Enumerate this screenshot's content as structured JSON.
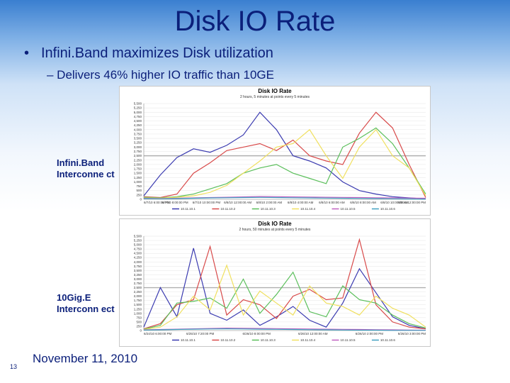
{
  "slide": {
    "title": "Disk IO Rate",
    "bullet": "Infini.Band maximizes Disk utilization",
    "sub_bullet": "– Delivers 46% higher IO traffic than 10GE",
    "bullet_marker": "•",
    "label_top": "Infini.Band Interconne ct",
    "label_bottom": "10Gig.E Interconn ect",
    "date": "November 11, 2010",
    "page_number": "13"
  },
  "chart_data": [
    {
      "type": "line",
      "title": "Disk IO Rate",
      "subtitle": "2 hours, 5 minutes at points every 5 minutes",
      "ylabel": "",
      "ylim": [
        0,
        5500
      ],
      "yticks": [
        "5,500",
        "5,250",
        "5,000",
        "4,750",
        "4,500",
        "4,250",
        "4,000",
        "3,750",
        "3,500",
        "3,250",
        "3,000",
        "2,750",
        "2,500",
        "2,250",
        "2,000",
        "1,750",
        "1,500",
        "1,250",
        "1,000",
        "750",
        "500",
        "250",
        "0"
      ],
      "xticks": [
        "6/7/10 6:00:00 PM",
        "6/7/10 8:00:00 PM",
        "6/7/10 10:00:00 PM",
        "6/8/10 12:00:00 AM",
        "6/8/10 2:00:00 AM",
        "6/8/10 4:00:00 AM",
        "6/8/10 6:00:00 AM",
        "6/8/10 8:00:00 AM",
        "6/8/10 10:00:00 AM",
        "6/8/10 12:00:00 PM"
      ],
      "legend": [
        "10.11.10.1",
        "10.11.10.2",
        "10.11.10.3",
        "10.11.10.4",
        "10.11.10.5",
        "10.11.10.6"
      ],
      "series": [
        {
          "name": "10.11.10.1",
          "color": "#3b3bb0",
          "values": [
            200,
            1400,
            2400,
            2900,
            2700,
            3100,
            3700,
            5000,
            4000,
            2500,
            2200,
            1800,
            1000,
            500,
            300,
            150,
            80,
            30
          ]
        },
        {
          "name": "10.11.10.2",
          "color": "#d84a4a",
          "values": [
            150,
            100,
            300,
            1500,
            2100,
            2800,
            3000,
            3200,
            2800,
            3400,
            2500,
            2200,
            2000,
            3800,
            5000,
            4100,
            2000,
            100
          ]
        },
        {
          "name": "10.11.10.3",
          "color": "#5bbf5b",
          "values": [
            120,
            80,
            150,
            300,
            600,
            900,
            1500,
            1800,
            2000,
            1500,
            1200,
            900,
            3000,
            3500,
            4100,
            3200,
            1800,
            300
          ]
        },
        {
          "name": "10.11.10.4",
          "color": "#f0e060",
          "values": [
            80,
            60,
            120,
            200,
            400,
            800,
            1500,
            2200,
            3000,
            3200,
            4000,
            2500,
            1200,
            3000,
            4000,
            2500,
            1800,
            200
          ]
        },
        {
          "name": "10.11.10.5",
          "color": "#c060c0",
          "values": [
            60,
            40,
            60,
            80,
            100,
            120,
            140,
            160,
            150,
            140,
            130,
            120,
            110,
            100,
            90,
            80,
            70,
            60
          ]
        },
        {
          "name": "10.11.10.6",
          "color": "#40a0c0",
          "values": [
            40,
            30,
            40,
            60,
            80,
            90,
            100,
            110,
            100,
            90,
            80,
            70,
            60,
            50,
            40,
            30,
            20,
            10
          ]
        }
      ]
    },
    {
      "type": "line",
      "title": "Disk IO Rate",
      "subtitle": "2 hours, 50 minutes at points every 5 minutes",
      "ylabel": "",
      "ylim": [
        0,
        5500
      ],
      "yticks": [
        "5,500",
        "5,250",
        "5,000",
        "4,750",
        "4,500",
        "4,250",
        "4,000",
        "3,750",
        "3,500",
        "3,250",
        "3,000",
        "2,750",
        "2,500",
        "2,250",
        "2,000",
        "1,750",
        "1,500",
        "1,250",
        "1,000",
        "750",
        "500",
        "250",
        "0"
      ],
      "xticks": [
        "6/24/10 6:00:00 PM",
        "6/25/10 7:20:00 PM",
        "6/26/10 8:00:00 PM",
        "6/26/10 12:00:00 AM",
        "6/26/10 2:00:00 PM",
        "6/26/10 3:00:00 PM"
      ],
      "legend": [
        "10.11.10.1",
        "10.11.10.2",
        "10.11.10.3",
        "10.11.10.4",
        "10.11.10.5",
        "10.11.10.6"
      ],
      "series": [
        {
          "name": "10.11.10.1",
          "color": "#3b3bb0",
          "values": [
            200,
            2500,
            800,
            4800,
            1000,
            600,
            1200,
            300,
            800,
            1400,
            600,
            200,
            1600,
            3600,
            2200,
            800,
            300,
            100
          ]
        },
        {
          "name": "10.11.10.2",
          "color": "#d84a4a",
          "values": [
            100,
            400,
            1500,
            1800,
            4900,
            900,
            1800,
            1500,
            700,
            2000,
            2400,
            1800,
            1900,
            5300,
            1500,
            500,
            200,
            100
          ]
        },
        {
          "name": "10.11.10.3",
          "color": "#5bbf5b",
          "values": [
            80,
            300,
            1600,
            1700,
            1900,
            1300,
            3000,
            1000,
            2100,
            3400,
            1100,
            800,
            2600,
            1800,
            1600,
            900,
            400,
            150
          ]
        },
        {
          "name": "10.11.10.4",
          "color": "#f0e060",
          "values": [
            60,
            200,
            800,
            2000,
            1200,
            3800,
            900,
            2300,
            1600,
            900,
            2600,
            1600,
            1400,
            900,
            2000,
            1300,
            900,
            200
          ]
        },
        {
          "name": "10.11.10.5",
          "color": "#c060c0",
          "values": [
            40,
            60,
            80,
            100,
            120,
            140,
            130,
            120,
            110,
            100,
            90,
            80,
            70,
            60,
            50,
            40,
            30,
            20
          ]
        },
        {
          "name": "10.11.10.6",
          "color": "#40a0c0",
          "values": [
            30,
            40,
            60,
            80,
            90,
            100,
            90,
            80,
            70,
            60,
            50,
            40,
            30,
            20,
            20,
            10,
            10,
            10
          ]
        }
      ]
    }
  ]
}
